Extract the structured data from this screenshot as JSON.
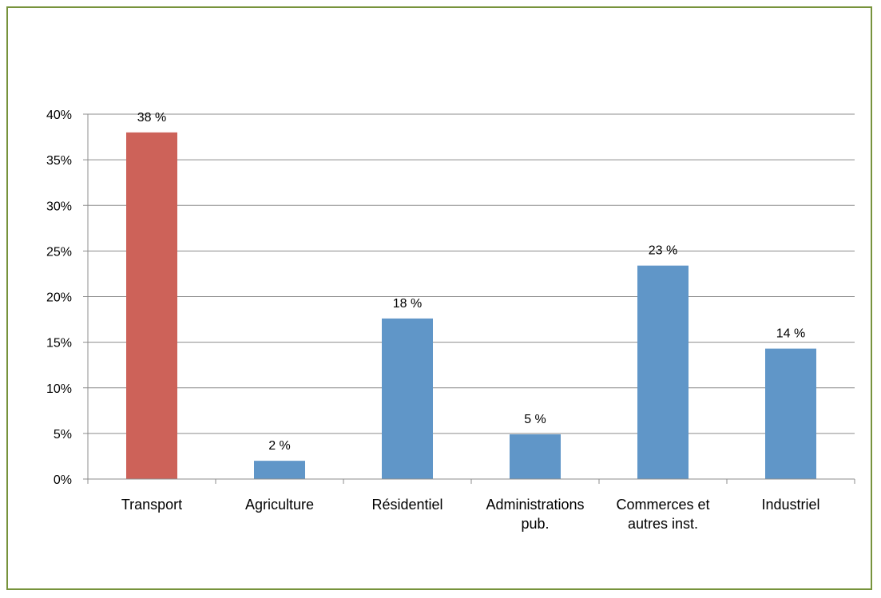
{
  "chart_data": {
    "type": "bar",
    "categories": [
      [
        "Transport"
      ],
      [
        "Agriculture"
      ],
      [
        "Résidentiel"
      ],
      [
        "Administrations",
        "pub."
      ],
      [
        "Commerces et",
        "autres inst."
      ],
      [
        "Industriel"
      ]
    ],
    "values": [
      38,
      2,
      17.6,
      4.9,
      23.4,
      14.3
    ],
    "data_labels": [
      "38 %",
      "2 %",
      "18 %",
      "5 %",
      "23 %",
      "14 %"
    ],
    "bar_colors": [
      "#cd6259",
      "#6096c8",
      "#6096c8",
      "#6096c8",
      "#6096c8",
      "#6096c8"
    ],
    "ylim": [
      0,
      40
    ],
    "yticks": [
      0,
      5,
      10,
      15,
      20,
      25,
      30,
      35,
      40
    ],
    "ytick_labels": [
      "0%",
      "5%",
      "10%",
      "15%",
      "20%",
      "25%",
      "30%",
      "35%",
      "40%"
    ],
    "grid": true,
    "legend": false
  },
  "colors": {
    "frame_border": "#77933c",
    "gridline": "#8c8c8c",
    "axis": "#8c8c8c"
  }
}
